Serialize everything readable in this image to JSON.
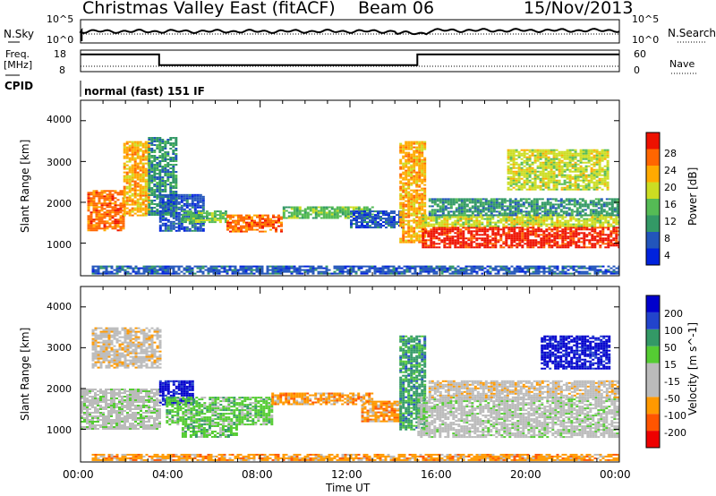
{
  "header": {
    "station": "Christmas Valley East (fitACF)",
    "beam": "Beam 06",
    "date": "15/Nov/2013"
  },
  "noise_panel": {
    "left_label": "N.Sky",
    "right_label": "N.Search",
    "left_ticks": [
      "10^5",
      "10^0"
    ],
    "right_ticks": [
      "10^5",
      "10^0"
    ]
  },
  "freq_panel": {
    "left_label_1": "Freq.",
    "left_label_2": "[MHz]",
    "right_label": "Nave",
    "left_ticks": [
      "18",
      "8"
    ],
    "right_ticks": [
      "60",
      "0"
    ],
    "freq_mhz": [
      [
        0.0,
        16
      ],
      [
        3.5,
        16
      ],
      [
        3.5,
        11
      ],
      [
        15.0,
        11
      ],
      [
        15.0,
        16
      ],
      [
        24.0,
        16
      ]
    ]
  },
  "cpid": {
    "label": "CPID",
    "mode": "normal (fast) 151 IF"
  },
  "colors": {
    "power": [
      "#0022dd",
      "#2255bb",
      "#339966",
      "#55bb55",
      "#ccdd22",
      "#ffaa00",
      "#ff6600",
      "#ee1100"
    ],
    "velocity": [
      "#ee0000",
      "#ff5500",
      "#ff9900",
      "#bbbbbb",
      "#bbbbbb",
      "#55cc33",
      "#339966",
      "#2244cc",
      "#0000cc"
    ]
  },
  "chart_data": [
    {
      "type": "heatmap",
      "name": "power",
      "xlabel": "",
      "ylabel": "Slant Range [km]",
      "xlim": [
        0,
        24
      ],
      "ylim": [
        200,
        4500
      ],
      "yticks": [
        "1000",
        "2000",
        "3000",
        "4000"
      ],
      "colorbar": {
        "label": "Power [dB]",
        "ticks": [
          "4",
          "8",
          "12",
          "16",
          "20",
          "24",
          "28"
        ]
      },
      "regions": [
        {
          "t0": 0.3,
          "t1": 1.9,
          "r0": 1300,
          "r1": 2300,
          "level": 6
        },
        {
          "t0": 1.9,
          "t1": 3.0,
          "r0": 1700,
          "r1": 3500,
          "level": 5
        },
        {
          "t0": 3.0,
          "t1": 4.3,
          "r0": 1700,
          "r1": 3600,
          "level": 2
        },
        {
          "t0": 3.5,
          "t1": 5.5,
          "r0": 1300,
          "r1": 2200,
          "level": 1
        },
        {
          "t0": 4.5,
          "t1": 6.5,
          "r0": 1500,
          "r1": 1800,
          "level": 3
        },
        {
          "t0": 6.5,
          "t1": 9.0,
          "r0": 1300,
          "r1": 1700,
          "level": 6
        },
        {
          "t0": 9.0,
          "t1": 13.0,
          "r0": 1600,
          "r1": 1900,
          "level": 3
        },
        {
          "t0": 12.0,
          "t1": 14.3,
          "r0": 1400,
          "r1": 1800,
          "level": 1
        },
        {
          "t0": 14.2,
          "t1": 15.3,
          "r0": 1000,
          "r1": 3500,
          "level": 5
        },
        {
          "t0": 15.2,
          "t1": 24.0,
          "r0": 900,
          "r1": 1400,
          "level": 7
        },
        {
          "t0": 15.2,
          "t1": 24.0,
          "r0": 1400,
          "r1": 1700,
          "level": 4
        },
        {
          "t0": 15.5,
          "t1": 24.0,
          "r0": 1700,
          "r1": 2100,
          "level": 2
        },
        {
          "t0": 19.0,
          "t1": 23.5,
          "r0": 2300,
          "r1": 3300,
          "level": 4
        },
        {
          "t0": 0.5,
          "t1": 24.0,
          "r0": 250,
          "r1": 450,
          "level": 1
        }
      ]
    },
    {
      "type": "heatmap",
      "name": "velocity",
      "xlabel": "Time UT",
      "ylabel": "Slant Range [km]",
      "xlim": [
        0,
        24
      ],
      "ylim": [
        200,
        4500
      ],
      "xticks": [
        "00:00",
        "04:00",
        "08:00",
        "12:00",
        "16:00",
        "20:00",
        "00:00"
      ],
      "yticks": [
        "1000",
        "2000",
        "3000",
        "4000"
      ],
      "colorbar": {
        "label": "Velocity [m s^-1]",
        "ticks": [
          "200",
          "100",
          "50",
          "15",
          "-15",
          "-50",
          "-100",
          "-200"
        ]
      },
      "regions": [
        {
          "t0": 0.0,
          "t1": 3.5,
          "r0": 1000,
          "r1": 2000,
          "level": 4
        },
        {
          "t0": 0.5,
          "t1": 3.5,
          "r0": 2500,
          "r1": 3500,
          "level": 3
        },
        {
          "t0": 3.5,
          "t1": 5.0,
          "r0": 1600,
          "r1": 2200,
          "level": 8
        },
        {
          "t0": 3.8,
          "t1": 8.5,
          "r0": 1100,
          "r1": 1800,
          "level": 5
        },
        {
          "t0": 4.5,
          "t1": 7.0,
          "r0": 800,
          "r1": 1100,
          "level": 5
        },
        {
          "t0": 8.5,
          "t1": 13.0,
          "r0": 1600,
          "r1": 1900,
          "level": 2
        },
        {
          "t0": 12.5,
          "t1": 14.2,
          "r0": 1200,
          "r1": 1700,
          "level": 2
        },
        {
          "t0": 14.2,
          "t1": 15.3,
          "r0": 1000,
          "r1": 3300,
          "level": 6
        },
        {
          "t0": 15.0,
          "t1": 24.0,
          "r0": 800,
          "r1": 1800,
          "level": 4
        },
        {
          "t0": 15.5,
          "t1": 24.0,
          "r0": 1800,
          "r1": 2200,
          "level": 3
        },
        {
          "t0": 20.5,
          "t1": 23.5,
          "r0": 2500,
          "r1": 3300,
          "level": 8
        },
        {
          "t0": 0.5,
          "t1": 24.0,
          "r0": 250,
          "r1": 400,
          "level": 2
        }
      ]
    }
  ]
}
